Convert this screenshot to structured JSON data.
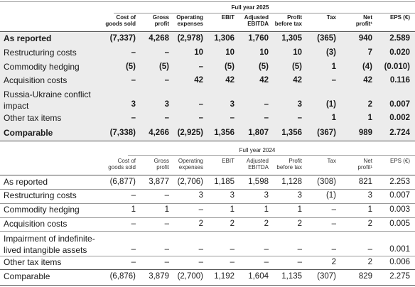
{
  "t2025": {
    "title": "Full year 2025",
    "headers": [
      [
        "Cost of",
        "goods sold"
      ],
      [
        "Gross",
        "profit"
      ],
      [
        "Operating",
        "expenses"
      ],
      [
        "",
        "EBIT"
      ],
      [
        "Adjusted",
        "EBITDA"
      ],
      [
        "Profit",
        "before tax"
      ],
      [
        "",
        "Tax"
      ],
      [
        "Net",
        "profit¹"
      ],
      [
        "",
        "EPS (€)"
      ]
    ],
    "rows": [
      {
        "label": "As reported",
        "values": [
          "(7,337)",
          "4,268",
          "(2,978)",
          "1,306",
          "1,760",
          "1,305",
          "(365)",
          "940",
          "2.589"
        ]
      },
      {
        "label": "Restructuring costs",
        "values": [
          "–",
          "–",
          "10",
          "10",
          "10",
          "10",
          "(3)",
          "7",
          "0.020"
        ]
      },
      {
        "label": "Commodity hedging",
        "values": [
          "(5)",
          "(5)",
          "–",
          "(5)",
          "(5)",
          "(5)",
          "1",
          "(4)",
          "(0.010)"
        ]
      },
      {
        "label": "Acquisition costs",
        "values": [
          "–",
          "–",
          "42",
          "42",
          "42",
          "42",
          "–",
          "42",
          "0.116"
        ]
      },
      {
        "label": "Russia-Ukraine conflict impact",
        "label_lines": [
          "Russia-Ukraine conflict",
          "impact"
        ],
        "values": [
          "3",
          "3",
          "–",
          "3",
          "–",
          "3",
          "(1)",
          "2",
          "0.007"
        ]
      },
      {
        "label": "Other tax items",
        "values": [
          "–",
          "–",
          "–",
          "–",
          "–",
          "–",
          "1",
          "1",
          "0.002"
        ]
      },
      {
        "label": "Comparable",
        "values": [
          "(7,338)",
          "4,266",
          "(2,925)",
          "1,356",
          "1,807",
          "1,356",
          "(367)",
          "989",
          "2.724"
        ]
      }
    ]
  },
  "t2024": {
    "title": "Full year 2024",
    "headers": [
      [
        "Cost of",
        "goods sold"
      ],
      [
        "Gross",
        "profit"
      ],
      [
        "Operating",
        "expenses"
      ],
      [
        "",
        "EBIT"
      ],
      [
        "Adjusted",
        "EBITDA"
      ],
      [
        "Profit",
        "before tax"
      ],
      [
        "",
        "Tax"
      ],
      [
        "Net",
        "profit¹"
      ],
      [
        "",
        "EPS (€)"
      ]
    ],
    "rows": [
      {
        "label": "As reported",
        "values": [
          "(6,877)",
          "3,877",
          "(2,706)",
          "1,185",
          "1,598",
          "1,128",
          "(308)",
          "821",
          "2.253"
        ]
      },
      {
        "label": "Restructuring costs",
        "values": [
          "–",
          "–",
          "3",
          "3",
          "3",
          "3",
          "(1)",
          "3",
          "0.007"
        ]
      },
      {
        "label": "Commodity hedging",
        "values": [
          "1",
          "1",
          "–",
          "1",
          "1",
          "1",
          "–",
          "1",
          "0.003"
        ]
      },
      {
        "label": "Acquisition costs",
        "values": [
          "–",
          "–",
          "2",
          "2",
          "2",
          "2",
          "–",
          "2",
          "0.005"
        ]
      },
      {
        "label": "Impairment of indefinite-lived intangible assets",
        "label_lines": [
          "Impairment of indefinite-",
          "lived intangible assets"
        ],
        "values": [
          "–",
          "–",
          "–",
          "–",
          "–",
          "–",
          "–",
          "–",
          "0.001"
        ]
      },
      {
        "label": "Other tax items",
        "values": [
          "–",
          "–",
          "–",
          "–",
          "–",
          "–",
          "2",
          "2",
          "0.006"
        ]
      },
      {
        "label": "Comparable",
        "values": [
          "(6,876)",
          "3,879",
          "(2,700)",
          "1,192",
          "1,604",
          "1,135",
          "(307)",
          "829",
          "2.275"
        ]
      }
    ]
  }
}
